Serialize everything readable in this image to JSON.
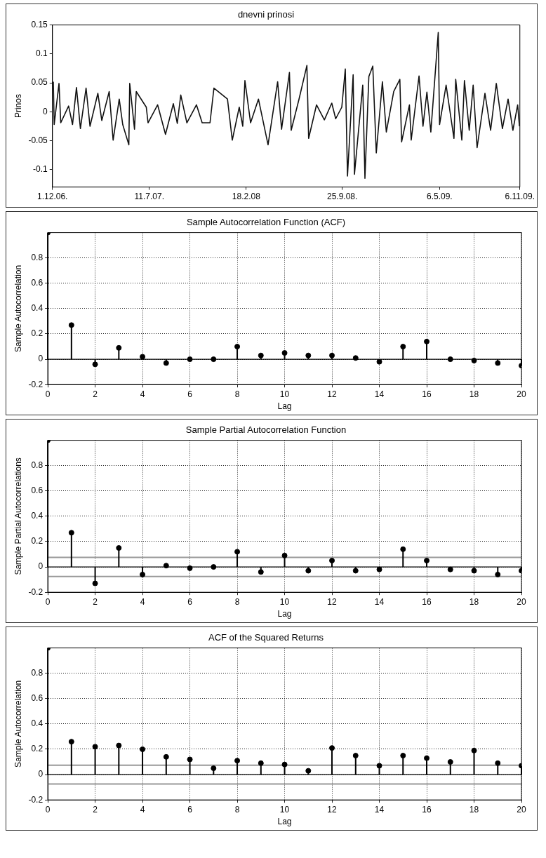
{
  "chart_data": [
    {
      "type": "line",
      "title": "dnevni prinosi",
      "ylabel": "Prinos",
      "grid": false,
      "x": [
        "2006-12-03",
        "2006-12-05",
        "2006-12-16",
        "2006-12-20",
        "2007-01-07",
        "2007-01-16",
        "2007-01-25",
        "2007-02-03",
        "2007-02-16",
        "2007-02-25",
        "2007-03-15",
        "2007-03-24",
        "2007-04-10",
        "2007-04-19",
        "2007-05-03",
        "2007-05-11",
        "2007-05-25",
        "2007-05-27",
        "2007-06-07",
        "2007-06-11",
        "2007-07-04",
        "2007-07-08",
        "2007-07-30",
        "2007-08-17",
        "2007-09-04",
        "2007-09-13",
        "2007-09-21",
        "2007-10-05",
        "2007-10-27",
        "2007-11-09",
        "2007-11-27",
        "2007-12-06",
        "2008-01-06",
        "2008-01-17",
        "2008-02-02",
        "2008-02-10",
        "2008-02-15",
        "2008-02-28",
        "2008-03-17",
        "2008-04-08",
        "2008-04-30",
        "2008-05-09",
        "2008-05-27",
        "2008-05-31",
        "2008-06-18",
        "2008-07-06",
        "2008-07-10",
        "2008-07-28",
        "2008-08-15",
        "2008-09-01",
        "2008-09-10",
        "2008-09-24",
        "2008-10-02",
        "2008-10-07",
        "2008-10-20",
        "2008-10-23",
        "2008-11-11",
        "2008-11-16",
        "2008-11-25",
        "2008-12-04",
        "2008-12-12",
        "2008-12-26",
        "2009-01-04",
        "2009-01-21",
        "2009-02-04",
        "2009-02-08",
        "2009-02-26",
        "2009-03-02",
        "2009-03-20",
        "2009-03-29",
        "2009-04-07",
        "2009-04-16",
        "2009-05-03",
        "2009-05-06",
        "2009-05-21",
        "2009-06-08",
        "2009-06-12",
        "2009-06-26",
        "2009-07-02",
        "2009-07-13",
        "2009-07-22",
        "2009-07-31",
        "2009-08-18",
        "2009-08-31",
        "2009-09-13",
        "2009-09-27",
        "2009-10-10",
        "2009-10-21",
        "2009-11-01",
        "2009-11-05"
      ],
      "series": [
        {
          "color": "#111111",
          "values": [
            0.052,
            -0.022,
            0.049,
            -0.019,
            0.01,
            -0.022,
            0.042,
            -0.029,
            0.041,
            -0.025,
            0.032,
            -0.015,
            0.035,
            -0.049,
            0.022,
            -0.022,
            -0.057,
            0.049,
            -0.03,
            0.035,
            0.008,
            -0.019,
            0.012,
            -0.039,
            0.014,
            -0.02,
            0.029,
            -0.019,
            0.012,
            -0.019,
            -0.019,
            0.041,
            0.022,
            -0.049,
            0.008,
            -0.025,
            0.054,
            -0.019,
            0.022,
            -0.057,
            0.052,
            -0.03,
            0.068,
            -0.032,
            0.022,
            0.08,
            -0.046,
            0.012,
            -0.014,
            0.015,
            -0.012,
            0.008,
            0.074,
            -0.111,
            0.064,
            -0.108,
            0.046,
            -0.115,
            0.061,
            0.079,
            -0.071,
            0.052,
            -0.035,
            0.035,
            0.056,
            -0.052,
            0.012,
            -0.049,
            0.062,
            -0.025,
            0.034,
            -0.035,
            0.137,
            -0.022,
            0.046,
            -0.046,
            0.056,
            -0.049,
            0.054,
            -0.032,
            0.046,
            -0.062,
            0.032,
            -0.032,
            0.049,
            -0.029,
            0.022,
            -0.032,
            0.012,
            -0.025
          ]
        }
      ],
      "xlim": [
        "2006-12-01",
        "2009-11-06"
      ],
      "xticks": [
        {
          "value": "2006-12-01",
          "label": "1.12.06."
        },
        {
          "value": "2007-07-11",
          "label": "11.7.07."
        },
        {
          "value": "2008-02-18",
          "label": "18.2.08"
        },
        {
          "value": "2008-09-25",
          "label": "25.9.08."
        },
        {
          "value": "2009-05-06",
          "label": "6.5.09."
        },
        {
          "value": "2009-11-06",
          "label": "6.11.09."
        }
      ],
      "ylim": [
        -0.13,
        0.15
      ],
      "yticks": [
        -0.1,
        -0.05,
        0,
        0.05,
        0.1,
        0.15
      ]
    },
    {
      "type": "lollipop",
      "title": "Sample Autocorrelation Function (ACF)",
      "xlabel": "Lag",
      "ylabel": "Sample Autocorrelation",
      "grid": true,
      "marker": "circle",
      "x": [
        0,
        1,
        2,
        3,
        4,
        5,
        6,
        7,
        8,
        9,
        10,
        11,
        12,
        13,
        14,
        15,
        16,
        17,
        18,
        19,
        20
      ],
      "series": [
        {
          "color": "#000000",
          "values": [
            1,
            0.27,
            -0.04,
            0.09,
            0.02,
            -0.03,
            0,
            0,
            0.1,
            0.03,
            0.05,
            0.03,
            0.03,
            0.01,
            -0.02,
            0.1,
            0.14,
            0,
            -0.01,
            -0.03,
            -0.05
          ]
        }
      ],
      "xlim": [
        0,
        20
      ],
      "xticks": [
        0,
        2,
        4,
        6,
        8,
        10,
        12,
        14,
        16,
        18,
        20
      ],
      "ylim": [
        -0.2,
        1
      ],
      "yticks": [
        -0.2,
        0,
        0.2,
        0.4,
        0.6,
        0.8
      ]
    },
    {
      "type": "lollipop",
      "title": "Sample Partial Autocorrelation Function",
      "xlabel": "Lag",
      "ylabel": "Sample Partial Autocorrelations",
      "grid": true,
      "marker": "circle",
      "x": [
        0,
        1,
        2,
        3,
        4,
        5,
        6,
        7,
        8,
        9,
        10,
        11,
        12,
        13,
        14,
        15,
        16,
        17,
        18,
        19,
        20
      ],
      "series": [
        {
          "color": "#000000",
          "values": [
            1,
            0.27,
            -0.13,
            0.15,
            -0.06,
            0.01,
            -0.01,
            0,
            0.12,
            -0.04,
            0.09,
            -0.03,
            0.05,
            -0.03,
            -0.02,
            0.14,
            0.05,
            -0.02,
            -0.03,
            -0.06,
            -0.03
          ]
        }
      ],
      "xlim": [
        0,
        20
      ],
      "xticks": [
        0,
        2,
        4,
        6,
        8,
        10,
        12,
        14,
        16,
        18,
        20
      ],
      "ylim": [
        -0.2,
        1
      ],
      "yticks": [
        -0.2,
        0,
        0.2,
        0.4,
        0.6,
        0.8
      ],
      "ref_lines": [
        {
          "axis": "y",
          "value": 0.076,
          "color": "#999999"
        },
        {
          "axis": "y",
          "value": -0.076,
          "color": "#999999"
        }
      ]
    },
    {
      "type": "lollipop",
      "title": "ACF of the Squared Returns",
      "xlabel": "Lag",
      "ylabel": "Sample Autocorrelation",
      "grid": true,
      "marker": "circle",
      "x": [
        0,
        1,
        2,
        3,
        4,
        5,
        6,
        7,
        8,
        9,
        10,
        11,
        12,
        13,
        14,
        15,
        16,
        17,
        18,
        19,
        20
      ],
      "series": [
        {
          "color": "#000000",
          "values": [
            1,
            0.26,
            0.22,
            0.23,
            0.2,
            0.14,
            0.12,
            0.05,
            0.11,
            0.09,
            0.08,
            0.03,
            0.21,
            0.15,
            0.07,
            0.15,
            0.13,
            0.1,
            0.19,
            0.09,
            0.07
          ]
        }
      ],
      "xlim": [
        0,
        20
      ],
      "xticks": [
        0,
        2,
        4,
        6,
        8,
        10,
        12,
        14,
        16,
        18,
        20
      ],
      "ylim": [
        -0.2,
        1
      ],
      "yticks": [
        -0.2,
        0,
        0.2,
        0.4,
        0.6,
        0.8
      ],
      "ref_lines": [
        {
          "axis": "y",
          "value": 0.074,
          "color": "#999999"
        },
        {
          "axis": "y",
          "value": -0.074,
          "color": "#999999"
        }
      ]
    }
  ]
}
